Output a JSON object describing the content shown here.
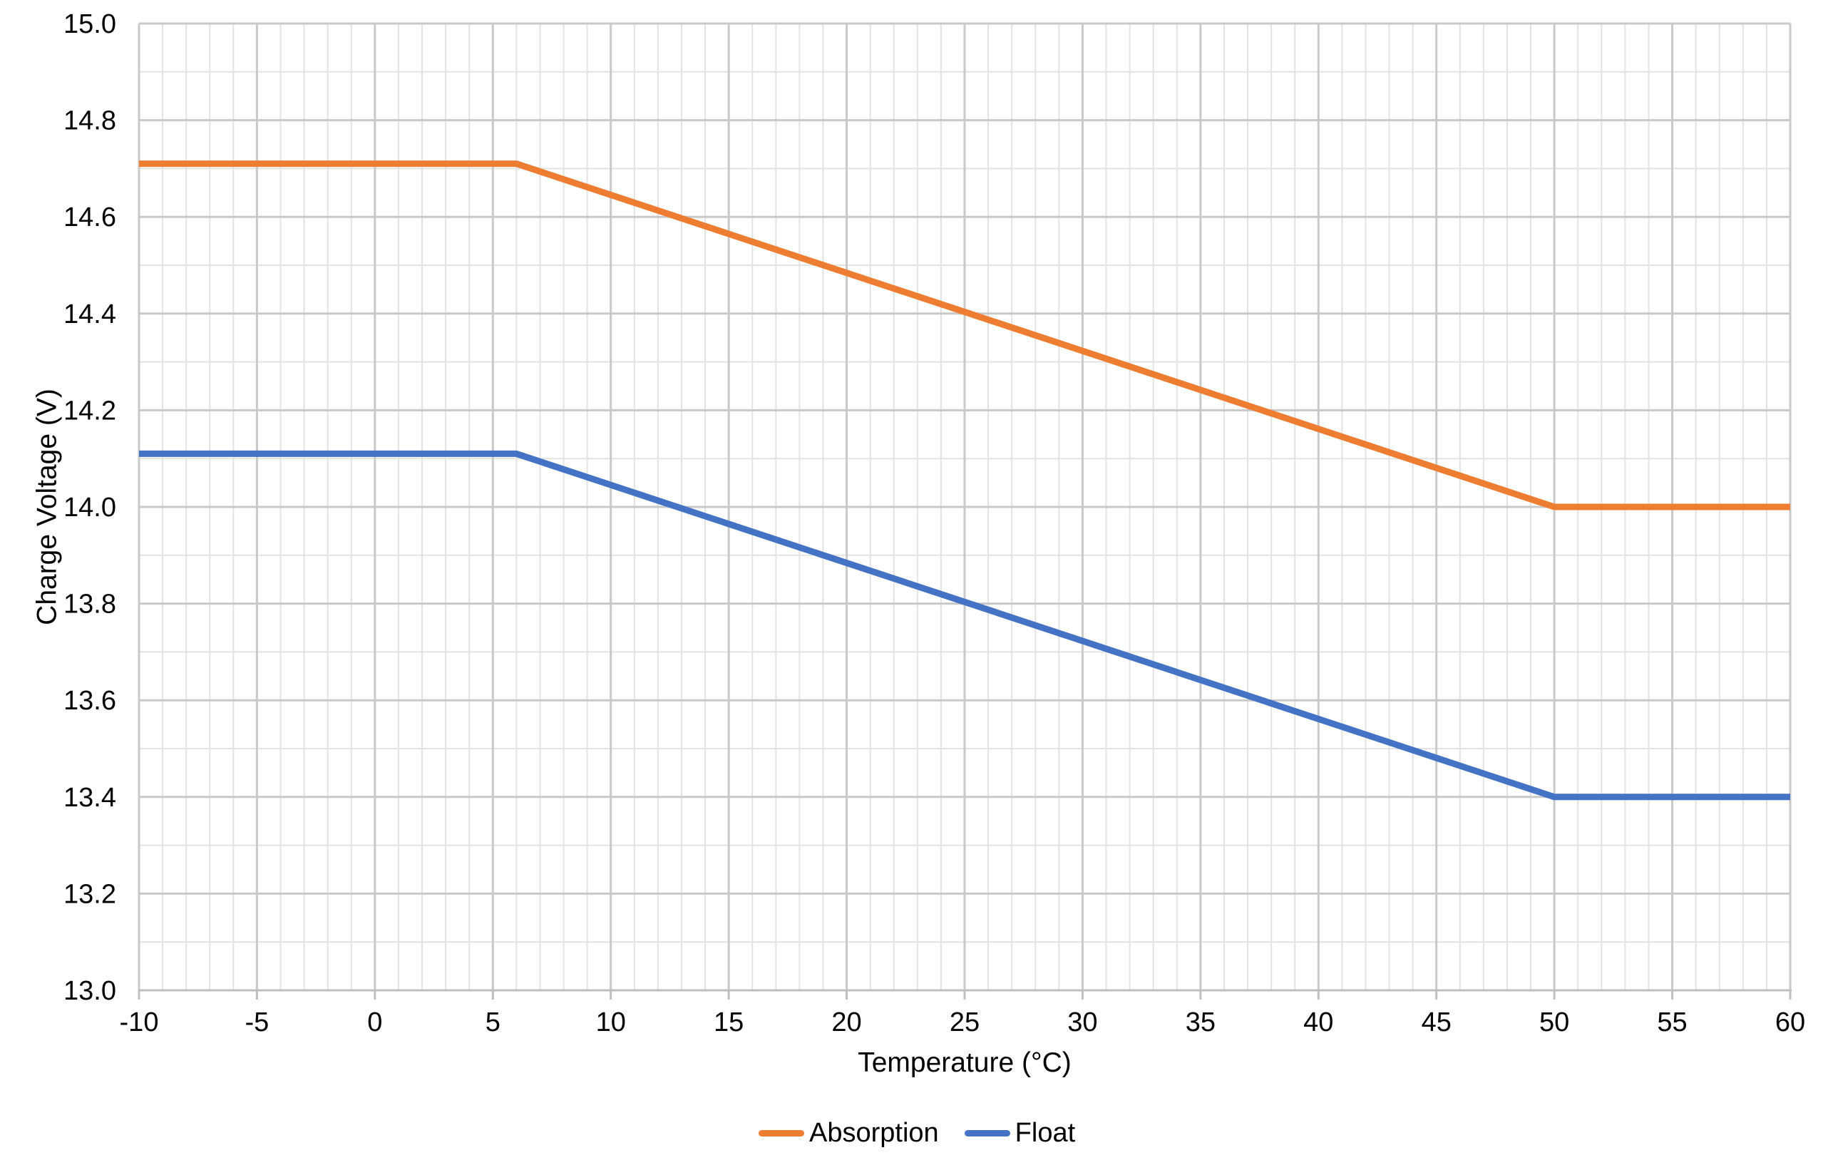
{
  "chart_data": {
    "type": "line",
    "title": "",
    "xlabel": "Temperature (°C)",
    "ylabel": "Charge Voltage (V)",
    "xlim": [
      -10,
      60
    ],
    "ylim": [
      13.0,
      15.0
    ],
    "x_tick_step": 5,
    "x_minor_step": 1,
    "y_tick_step": 0.2,
    "y_minor_step": 0.1,
    "x_tick_labels": [
      "-10",
      "-5",
      "0",
      "5",
      "10",
      "15",
      "20",
      "25",
      "30",
      "35",
      "40",
      "45",
      "50",
      "55",
      "60"
    ],
    "y_tick_labels": [
      "13.0",
      "13.2",
      "13.4",
      "13.6",
      "13.8",
      "14.0",
      "14.2",
      "14.4",
      "14.6",
      "14.8",
      "15.0"
    ],
    "grid": {
      "major": true,
      "minor": true
    },
    "legend_position": "bottom-center",
    "series": [
      {
        "name": "Absorption",
        "color": "#ED7D31",
        "points": [
          [
            -10,
            14.71
          ],
          [
            6,
            14.71
          ],
          [
            50,
            14.0
          ],
          [
            60,
            14.0
          ]
        ]
      },
      {
        "name": "Float",
        "color": "#4472C4",
        "points": [
          [
            -10,
            14.11
          ],
          [
            6,
            14.11
          ],
          [
            50,
            13.4
          ],
          [
            60,
            13.4
          ]
        ]
      }
    ],
    "style": {
      "major_grid_color": "#C9C9C9",
      "minor_grid_color": "#E3E3E3",
      "axis_color": "#BFBFBF",
      "text_color": "#000000",
      "series_stroke_width": 9
    }
  }
}
